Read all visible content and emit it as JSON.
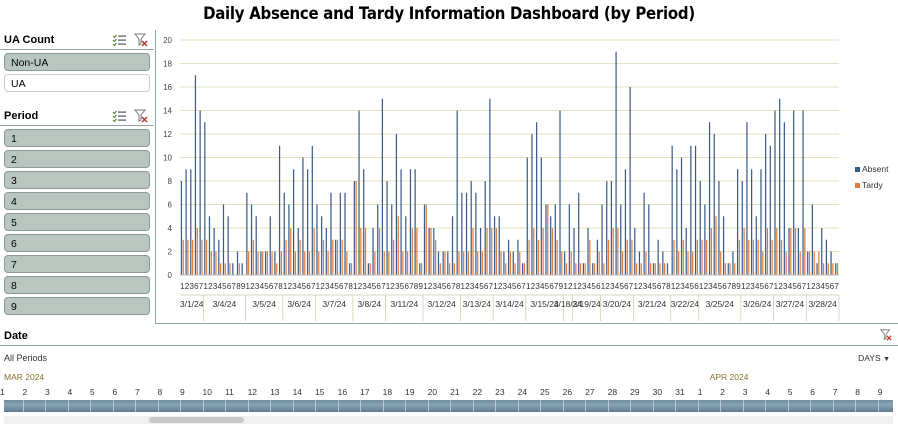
{
  "title": "Daily Absence and Tardy Information Dashboard (by Period)",
  "ua_slicer": {
    "header": "UA Count",
    "items": [
      {
        "label": "Non-UA",
        "selected": true
      },
      {
        "label": "UA",
        "selected": false
      }
    ]
  },
  "period_slicer": {
    "header": "Period",
    "items": [
      "1",
      "2",
      "3",
      "4",
      "5",
      "6",
      "7",
      "8",
      "9"
    ]
  },
  "colors": {
    "absent": "#3a5a8c",
    "tardy": "#e07b39",
    "selected_item": "#b9c6c0",
    "grid": "#e3e3c0"
  },
  "chart_data": {
    "type": "bar",
    "ylim": [
      0,
      20
    ],
    "y_ticks": [
      "0",
      "2",
      "4",
      "6",
      "8",
      "10",
      "12",
      "14",
      "16",
      "18",
      "20"
    ],
    "grid": true,
    "legend_position": "right",
    "groups": [
      {
        "date": "3/1/24",
        "periods": [
          "1",
          "2",
          "3",
          "6",
          "7"
        ],
        "absent": [
          8,
          9,
          9,
          17,
          14
        ],
        "tardy": [
          3,
          3,
          3,
          4,
          3
        ]
      },
      {
        "date": "3/4/24",
        "periods": [
          "1",
          "2",
          "3",
          "4",
          "5",
          "6",
          "7",
          "8",
          "9"
        ],
        "absent": [
          13,
          5,
          4,
          3,
          6,
          5,
          1,
          2,
          1
        ],
        "tardy": [
          3,
          2,
          2,
          1,
          1,
          1,
          0,
          1,
          0
        ]
      },
      {
        "date": "3/5/24",
        "periods": [
          "1",
          "2",
          "3",
          "4",
          "5",
          "6",
          "7",
          "8"
        ],
        "absent": [
          7,
          6,
          5,
          2,
          2,
          5,
          2,
          11
        ],
        "tardy": [
          2,
          3,
          2,
          2,
          2,
          2,
          1,
          2
        ]
      },
      {
        "date": "3/6/24",
        "periods": [
          "1",
          "2",
          "3",
          "4",
          "5",
          "6",
          "7"
        ],
        "absent": [
          7,
          6,
          9,
          4,
          10,
          9,
          11
        ],
        "tardy": [
          3,
          4,
          2,
          3,
          2,
          2,
          4
        ]
      },
      {
        "date": "3/7/24",
        "periods": [
          "1",
          "2",
          "3",
          "4",
          "5",
          "6",
          "7",
          "8"
        ],
        "absent": [
          6,
          5,
          4,
          7,
          3,
          7,
          7,
          1
        ],
        "tardy": [
          2,
          3,
          2,
          3,
          3,
          3,
          2,
          1
        ]
      },
      {
        "date": "3/8/24",
        "periods": [
          "1",
          "2",
          "3",
          "4",
          "5",
          "6",
          "7"
        ],
        "absent": [
          8,
          14,
          9,
          1,
          4,
          6,
          15
        ],
        "tardy": [
          8,
          4,
          4,
          1,
          2,
          4,
          2
        ]
      },
      {
        "date": "3/11/24",
        "periods": [
          "1",
          "2",
          "3",
          "5",
          "6",
          "7",
          "8",
          "9"
        ],
        "absent": [
          8,
          6,
          12,
          9,
          5,
          9,
          9,
          1
        ],
        "tardy": [
          2,
          3,
          5,
          2,
          2,
          4,
          4,
          1
        ]
      },
      {
        "date": "3/12/24",
        "periods": [
          "1",
          "2",
          "3",
          "4",
          "5",
          "6",
          "7",
          "8"
        ],
        "absent": [
          6,
          4,
          4,
          2,
          2,
          2,
          5,
          14
        ],
        "tardy": [
          6,
          4,
          3,
          1,
          2,
          1,
          1,
          2
        ]
      },
      {
        "date": "3/13/24",
        "periods": [
          "1",
          "2",
          "3",
          "4",
          "5",
          "6",
          "7"
        ],
        "absent": [
          7,
          7,
          8,
          7,
          4,
          8,
          15
        ],
        "tardy": [
          2,
          2,
          4,
          2,
          2,
          4,
          4
        ]
      },
      {
        "date": "3/14/24",
        "periods": [
          "1",
          "2",
          "3",
          "4",
          "5",
          "6",
          "7"
        ],
        "absent": [
          5,
          5,
          2,
          3,
          2,
          3,
          1
        ],
        "tardy": [
          4,
          2,
          1,
          2,
          1,
          2,
          1
        ]
      },
      {
        "date": "3/15/24",
        "periods": [
          "1",
          "2",
          "3",
          "4",
          "5",
          "6",
          "7",
          "9"
        ],
        "absent": [
          10,
          12,
          13,
          10,
          6,
          5,
          6,
          14
        ],
        "tardy": [
          3,
          4,
          3,
          4,
          6,
          4,
          3,
          2
        ]
      },
      {
        "date": "3/18/24",
        "periods": [
          "1",
          "2"
        ],
        "absent": [
          2,
          6
        ],
        "tardy": [
          1,
          2
        ]
      },
      {
        "date": "3/19/24",
        "periods": [
          "1",
          "2",
          "3",
          "4",
          "5",
          "6"
        ],
        "absent": [
          4,
          7,
          1,
          4,
          1,
          3
        ],
        "tardy": [
          1,
          1,
          1,
          3,
          1,
          2
        ]
      },
      {
        "date": "3/20/24",
        "periods": [
          "1",
          "2",
          "3",
          "4",
          "5",
          "6",
          "7"
        ],
        "absent": [
          6,
          8,
          8,
          19,
          6,
          9,
          16
        ],
        "tardy": [
          1,
          3,
          4,
          4,
          2,
          3,
          3
        ]
      },
      {
        "date": "3/21/24",
        "periods": [
          "1",
          "2",
          "3",
          "4",
          "5",
          "6",
          "7",
          "8"
        ],
        "absent": [
          4,
          2,
          7,
          6,
          1,
          3,
          2,
          1
        ],
        "tardy": [
          1,
          1,
          2,
          1,
          1,
          1,
          1,
          0
        ]
      },
      {
        "date": "3/22/24",
        "periods": [
          "1",
          "2",
          "3",
          "4",
          "5",
          "6"
        ],
        "absent": [
          11,
          9,
          10,
          4,
          11,
          11
        ],
        "tardy": [
          3,
          2,
          3,
          2,
          2,
          3
        ]
      },
      {
        "date": "3/25/24",
        "periods": [
          "1",
          "2",
          "3",
          "4",
          "5",
          "6",
          "7",
          "8",
          "9"
        ],
        "absent": [
          8,
          6,
          13,
          12,
          8,
          5,
          1,
          2,
          9
        ],
        "tardy": [
          3,
          3,
          4,
          5,
          2,
          1,
          1,
          1,
          3
        ]
      },
      {
        "date": "3/26/24",
        "periods": [
          "1",
          "2",
          "3",
          "4",
          "5",
          "6",
          "7"
        ],
        "absent": [
          8,
          13,
          9,
          5,
          9,
          12,
          11
        ],
        "tardy": [
          4,
          3,
          3,
          3,
          2,
          4,
          3
        ]
      },
      {
        "date": "3/27/24",
        "periods": [
          "1",
          "2",
          "3",
          "4",
          "5",
          "6",
          "7"
        ],
        "absent": [
          14,
          15,
          13,
          4,
          14,
          4,
          14
        ],
        "tardy": [
          4,
          3,
          2,
          4,
          4,
          2,
          4
        ]
      },
      {
        "date": "3/28/24",
        "periods": [
          "1",
          "2",
          "3",
          "4",
          "5",
          "6",
          "7"
        ],
        "absent": [
          2,
          6,
          1,
          4,
          3,
          2,
          1
        ],
        "tardy": [
          2,
          2,
          2,
          1,
          1,
          1,
          1
        ]
      }
    ],
    "series": [
      {
        "name": "Absent"
      },
      {
        "name": "Tardy"
      }
    ]
  },
  "timeline": {
    "header": "Date",
    "range_label": "All Periods",
    "level_label": "DAYS",
    "months": [
      {
        "label": "MAR 2024",
        "start_index": 0
      },
      {
        "label": "APR 2024",
        "start_index": 31
      }
    ],
    "days": [
      "1",
      "2",
      "3",
      "4",
      "5",
      "6",
      "7",
      "8",
      "9",
      "10",
      "11",
      "12",
      "13",
      "14",
      "15",
      "16",
      "17",
      "18",
      "19",
      "20",
      "21",
      "22",
      "23",
      "24",
      "25",
      "26",
      "27",
      "28",
      "29",
      "30",
      "31",
      "1",
      "2",
      "3",
      "4",
      "5",
      "6",
      "7",
      "8",
      "9"
    ]
  }
}
